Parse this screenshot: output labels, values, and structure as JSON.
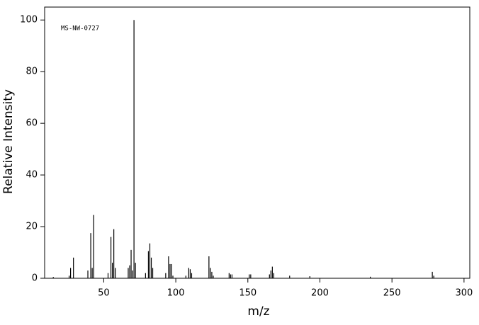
{
  "chart_data": {
    "type": "stem",
    "annotation": "MS-NW-0727",
    "xlabel": "m/z",
    "ylabel": "Relative Intensity",
    "x": [
      15,
      26,
      27,
      29,
      39,
      41,
      42,
      43,
      53,
      55,
      56,
      57,
      58,
      67,
      68,
      69,
      70,
      71,
      72,
      79,
      81,
      82,
      83,
      84,
      93,
      95,
      96,
      97,
      98,
      107,
      109,
      110,
      111,
      123,
      124,
      125,
      126,
      137,
      138,
      139,
      151,
      152,
      165,
      166,
      167,
      168,
      179,
      193,
      235,
      278,
      279
    ],
    "values": [
      0.5,
      1,
      4,
      8,
      3,
      17.5,
      4,
      24.5,
      2,
      16,
      6,
      19,
      4,
      4,
      5,
      11,
      3,
      100,
      6,
      2,
      10.5,
      13.5,
      8,
      4,
      2,
      8.5,
      5.5,
      5.5,
      1,
      1,
      4,
      3.5,
      2,
      8.5,
      4,
      2.5,
      1,
      2,
      1.5,
      1.5,
      1.5,
      1.5,
      1.5,
      3,
      4.5,
      2,
      1,
      0.8,
      0.6,
      2.5,
      1
    ],
    "color": "#000000",
    "xlim": [
      9,
      304
    ],
    "xticks": [
      50,
      100,
      150,
      200,
      250,
      300
    ],
    "ylim": [
      0,
      105
    ],
    "yticks": [
      0,
      20,
      40,
      60,
      80,
      100
    ]
  }
}
